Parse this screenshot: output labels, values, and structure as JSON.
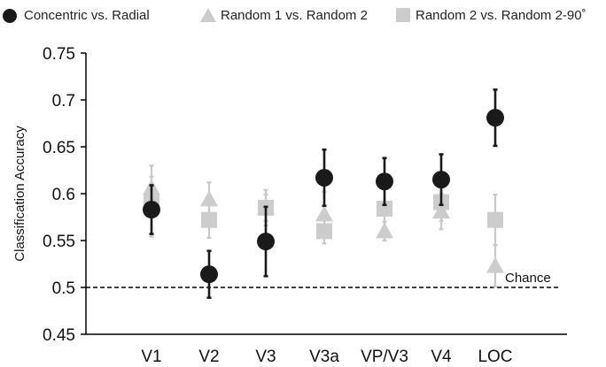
{
  "chart_data": {
    "type": "scatter",
    "ylabel": "Classification Accuracy",
    "xlabel": "",
    "categories": [
      "V1",
      "V2",
      "V3",
      "V3a",
      "VP/V3",
      "V4",
      "LOC"
    ],
    "ylim": [
      0.45,
      0.75
    ],
    "yticks": [
      "0.45",
      "0.5",
      "0.55",
      "0.6",
      "0.65",
      "0.7",
      "0.75"
    ],
    "grid": false,
    "legend_position": "top",
    "chance_level": 0.5,
    "chance_label": "Chance",
    "series": [
      {
        "name": "Concentric vs. Radial",
        "marker": "circle",
        "color": "#1a1a1a",
        "errorbar_color": "#1a1a1a",
        "values": [
          0.583,
          0.514,
          0.549,
          0.617,
          0.613,
          0.615,
          0.681
        ],
        "error": [
          0.026,
          0.025,
          0.037,
          0.03,
          0.025,
          0.027,
          0.03
        ]
      },
      {
        "name": "Random 1 vs. Random 2",
        "marker": "triangle",
        "color": "#cccccc",
        "errorbar_color": "#c8c8c8",
        "values": [
          0.606,
          0.594,
          0.585,
          0.578,
          0.56,
          0.581,
          0.523
        ],
        "error": [
          0.012,
          0.018,
          0.014,
          0.024,
          0.01,
          0.019,
          0.022
        ]
      },
      {
        "name": "Random 2 vs. Random 2-90˚",
        "marker": "square",
        "color": "#cccccc",
        "errorbar_color": "#c8c8c8",
        "values": [
          0.592,
          0.572,
          0.585,
          0.56,
          0.584,
          0.591,
          0.572
        ],
        "error": [
          0.038,
          0.019,
          0.019,
          0.013,
          0.021,
          0.02,
          0.027
        ]
      }
    ]
  }
}
